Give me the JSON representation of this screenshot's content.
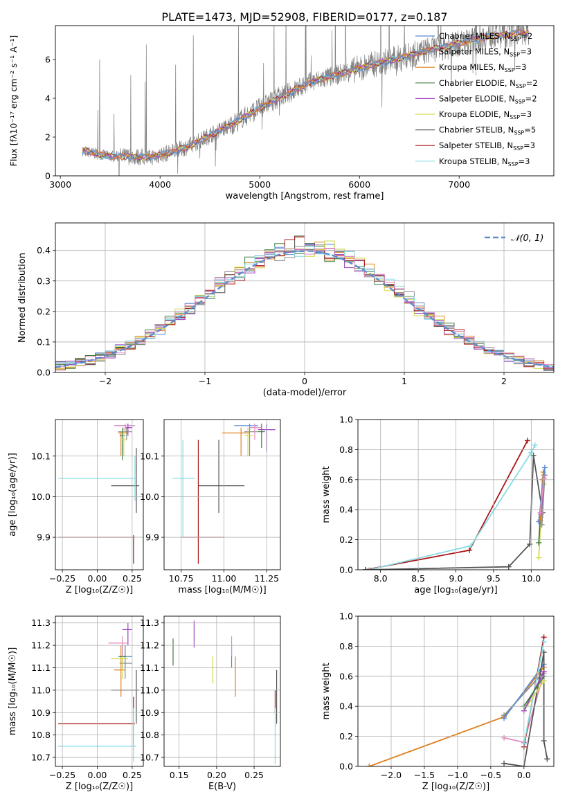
{
  "title": "PLATE=1473, MJD=52908, FIBERID=0177, z=0.187",
  "colors": {
    "Chabrier MILES": "#5b8bd0",
    "Salpeter MILES": "#8c8c8c",
    "Kroupa MILES": "#e0801f",
    "Chabrier ELODIE": "#3e7d3e",
    "Salpeter ELODIE": "#9b3fbf",
    "Kroupa ELODIE": "#d3d94c",
    "Chabrier STELIB": "#555555",
    "Salpeter STELIB": "#aa1515",
    "Kroupa STELIB": "#86dbe3",
    "pink": "#e38cc0",
    "gaussian": "#5b8bd0"
  },
  "chart_data": [
    {
      "type": "line",
      "id": "spectrum",
      "xlabel": "wavelength [Angstrom, rest frame]",
      "ylabel": "Flux [f$_\\lambda$10$^{-17}$ erg cm$^{-2}$ s$^{-1}$ A$^{-1}$]",
      "xlim": [
        2950,
        7950
      ],
      "ylim": [
        0,
        7.75
      ],
      "xticks": [
        "3000",
        "4000",
        "5000",
        "6000",
        "7000"
      ],
      "yticks": [
        "0",
        "2",
        "4",
        "6"
      ],
      "legend": "upper-right",
      "legend_entries": [
        {
          "label": "Chabrier MILES, N",
          "sub": "SSP",
          "suffix": "=2",
          "key": "Chabrier MILES"
        },
        {
          "label": "Salpeter MILES, N",
          "sub": "SSP",
          "suffix": "=3",
          "key": "Salpeter MILES"
        },
        {
          "label": "Kroupa MILES, N",
          "sub": "SSP",
          "suffix": "=3",
          "key": "Kroupa MILES"
        },
        {
          "label": "Chabrier ELODIE, N",
          "sub": "SSP",
          "suffix": "=2",
          "key": "Chabrier ELODIE"
        },
        {
          "label": "Salpeter ELODIE, N",
          "sub": "SSP",
          "suffix": "=2",
          "key": "Salpeter ELODIE"
        },
        {
          "label": "Kroupa ELODIE, N",
          "sub": "SSP",
          "suffix": "=3",
          "key": "Kroupa ELODIE"
        },
        {
          "label": "Chabrier STELIB, N",
          "sub": "SSP",
          "suffix": "=5",
          "key": "Chabrier STELIB"
        },
        {
          "label": "Salpeter STELIB, N",
          "sub": "SSP",
          "suffix": "=3",
          "key": "Salpeter STELIB"
        },
        {
          "label": "Kroupa STELIB, N",
          "sub": "SSP",
          "suffix": "=3",
          "key": "Kroupa STELIB"
        }
      ],
      "continuum": [
        [
          3220,
          1.3
        ],
        [
          3300,
          1.2
        ],
        [
          3500,
          1.0
        ],
        [
          3700,
          1.0
        ],
        [
          3900,
          0.95
        ],
        [
          4100,
          1.2
        ],
        [
          4300,
          1.55
        ],
        [
          4500,
          2.1
        ],
        [
          4700,
          2.6
        ],
        [
          4900,
          3.2
        ],
        [
          5100,
          3.8
        ],
        [
          5300,
          4.3
        ],
        [
          5500,
          4.8
        ],
        [
          5700,
          5.1
        ],
        [
          5900,
          5.4
        ],
        [
          6100,
          5.7
        ],
        [
          6300,
          5.95
        ],
        [
          6500,
          6.2
        ],
        [
          6700,
          6.5
        ],
        [
          6900,
          6.7
        ],
        [
          7100,
          6.95
        ],
        [
          7300,
          7.2
        ],
        [
          7450,
          7.25
        ],
        [
          7600,
          7.4
        ],
        [
          7700,
          7.3
        ]
      ]
    },
    {
      "type": "bar",
      "id": "residuals",
      "xlabel": "(data-model)/error",
      "ylabel": "Normed distribution",
      "xlim": [
        -2.5,
        2.5
      ],
      "ylim": [
        0,
        0.49
      ],
      "xticks": [
        "−2",
        "−1",
        "0",
        "1",
        "2"
      ],
      "yticks": [
        "0.0",
        "0.1",
        "0.2",
        "0.3",
        "0.4"
      ],
      "legend": "upper-right",
      "gaussian_label": "𝒩(0, 1)",
      "bin_width": 0.1
    },
    {
      "type": "scatter",
      "id": "age-vs-Z",
      "xlabel": "Z [log₁₀(Z/Z☉)]",
      "ylabel": "age  [log₁₀(age/yr)]",
      "xlim": [
        -0.3,
        0.33
      ],
      "ylim": [
        9.82,
        10.19
      ],
      "xticks": [
        "−0.25",
        "0.00",
        "0.25"
      ],
      "yticks": [
        "9.9",
        "10.0",
        "10.1"
      ],
      "points": [
        {
          "key": "Chabrier MILES",
          "x": 0.22,
          "y": 10.175,
          "ex": [
            0.13,
            0.27
          ],
          "ey": [
            10.165,
            10.18
          ]
        },
        {
          "key": "Salpeter MILES",
          "x": 0.21,
          "y": 10.16,
          "ex": [
            0.15,
            0.25
          ],
          "ey": [
            10.14,
            10.17
          ]
        },
        {
          "key": "Kroupa MILES",
          "x": 0.17,
          "y": 10.157,
          "ex": [
            0.15,
            0.22
          ],
          "ey": [
            10.1,
            10.16
          ]
        },
        {
          "key": "Chabrier ELODIE",
          "x": 0.18,
          "y": 10.15,
          "ex": [
            0.16,
            0.2
          ],
          "ey": [
            10.09,
            10.17
          ]
        },
        {
          "key": "Salpeter ELODIE",
          "x": 0.22,
          "y": 10.17,
          "ex": [
            0.2,
            0.25
          ],
          "ey": [
            10.15,
            10.18
          ]
        },
        {
          "key": "Kroupa ELODIE",
          "x": 0.19,
          "y": 10.14,
          "ex": [
            0.17,
            0.21
          ],
          "ey": [
            10.1,
            10.17
          ]
        },
        {
          "key": "Chabrier STELIB",
          "x": 0.28,
          "y": 10.027,
          "ex": [
            0.1,
            0.3
          ],
          "ey": [
            9.96,
            10.12
          ]
        },
        {
          "key": "Salpeter STELIB",
          "x": 0.26,
          "y": 9.9,
          "ex": [
            -0.28,
            0.27
          ],
          "ey": [
            9.835,
            9.905
          ]
        },
        {
          "key": "Kroupa STELIB",
          "x": 0.27,
          "y": 10.045,
          "ex": [
            -0.28,
            0.28
          ],
          "ey": [
            9.99,
            10.1
          ]
        },
        {
          "key": "pink",
          "x": 0.2,
          "y": 10.175,
          "ex": [
            0.12,
            0.27
          ],
          "ey": [
            10.16,
            10.18
          ]
        }
      ]
    },
    {
      "type": "scatter",
      "id": "age-vs-mass",
      "xlabel": "mass [log₁₀(M/M☉)]",
      "ylabel": "",
      "xlim": [
        10.65,
        11.33
      ],
      "ylim": [
        9.82,
        10.19
      ],
      "xticks": [
        "10.75",
        "11.00",
        "11.25"
      ],
      "yticks": [
        "9.9",
        "10.0",
        "10.1"
      ],
      "points": [
        {
          "key": "Chabrier MILES",
          "x": 11.15,
          "y": 10.175,
          "ex": [
            11.06,
            11.2
          ],
          "ey": [
            10.165,
            10.18
          ]
        },
        {
          "key": "Salpeter MILES",
          "x": 11.15,
          "y": 10.16,
          "ex": [
            11.12,
            11.2
          ],
          "ey": [
            10.1,
            10.17
          ]
        },
        {
          "key": "Kroupa MILES",
          "x": 11.1,
          "y": 10.157,
          "ex": [
            10.99,
            11.15
          ],
          "ey": [
            10.1,
            10.17
          ]
        },
        {
          "key": "Chabrier ELODIE",
          "x": 11.22,
          "y": 10.16,
          "ex": [
            11.2,
            11.24
          ],
          "ey": [
            10.12,
            10.18
          ]
        },
        {
          "key": "Salpeter ELODIE",
          "x": 11.25,
          "y": 10.165,
          "ex": [
            11.2,
            11.3
          ],
          "ey": [
            10.11,
            10.18
          ]
        },
        {
          "key": "Kroupa ELODIE",
          "x": 11.14,
          "y": 10.15,
          "ex": [
            11.12,
            11.17
          ],
          "ey": [
            10.1,
            10.17
          ]
        },
        {
          "key": "Chabrier STELIB",
          "x": 10.97,
          "y": 10.027,
          "ex": [
            10.85,
            11.12
          ],
          "ey": [
            9.96,
            10.14
          ]
        },
        {
          "key": "Salpeter STELIB",
          "x": 10.85,
          "y": 9.9,
          "ex": [
            10.75,
            11.0
          ],
          "ey": [
            9.835,
            10.14
          ]
        },
        {
          "key": "Kroupa STELIB",
          "x": 10.76,
          "y": 10.045,
          "ex": [
            10.7,
            10.83
          ],
          "ey": [
            9.9,
            10.14
          ]
        },
        {
          "key": "pink",
          "x": 11.18,
          "y": 10.17,
          "ex": [
            11.15,
            11.22
          ],
          "ey": [
            10.14,
            10.18
          ]
        }
      ]
    },
    {
      "type": "line",
      "id": "massweight-vs-age",
      "xlabel": "age  [log₁₀(age/yr)]",
      "ylabel": "mass weight",
      "xlim": [
        7.7,
        10.3
      ],
      "ylim": [
        0,
        1
      ],
      "xticks": [
        "8.0",
        "8.5",
        "9.0",
        "9.5",
        "10.0"
      ],
      "yticks": [
        "0.0",
        "0.2",
        "0.4",
        "0.6",
        "0.8",
        "1.0"
      ],
      "series": [
        {
          "key": "Salpeter STELIB",
          "x": [
            7.8,
            9.18,
            9.95
          ],
          "y": [
            0.0,
            0.13,
            0.86
          ]
        },
        {
          "key": "Kroupa STELIB",
          "x": [
            7.85,
            9.2,
            10.0,
            10.05
          ],
          "y": [
            0.0,
            0.16,
            0.78,
            0.83
          ]
        },
        {
          "key": "Chabrier STELIB",
          "x": [
            7.8,
            9.7,
            9.98,
            10.03,
            10.15
          ],
          "y": [
            0.0,
            0.02,
            0.17,
            0.76,
            0.38
          ]
        },
        {
          "key": "Kroupa ELODIE",
          "x": [
            10.1,
            10.13,
            10.17
          ],
          "y": [
            0.08,
            0.35,
            0.57
          ]
        },
        {
          "key": "Salpeter ELODIE",
          "x": [
            10.13,
            10.17
          ],
          "y": [
            0.37,
            0.63
          ]
        },
        {
          "key": "Chabrier ELODIE",
          "x": [
            10.1,
            10.15
          ],
          "y": [
            0.18,
            0.6
          ]
        },
        {
          "key": "Kroupa MILES",
          "x": [
            10.12,
            10.16
          ],
          "y": [
            0.33,
            0.65
          ]
        },
        {
          "key": "Salpeter MILES",
          "x": [
            10.14,
            10.18
          ],
          "y": [
            0.3,
            0.63
          ]
        },
        {
          "key": "Chabrier MILES",
          "x": [
            10.1,
            10.18
          ],
          "y": [
            0.32,
            0.68
          ]
        },
        {
          "key": "pink",
          "x": [
            10.12,
            10.17
          ],
          "y": [
            0.38,
            0.61
          ]
        }
      ]
    },
    {
      "type": "scatter",
      "id": "mass-vs-Z",
      "xlabel": "Z [log₁₀(Z/Z☉)]",
      "ylabel": "mass [log₁₀(M/M☉)]",
      "xlim": [
        -0.3,
        0.33
      ],
      "ylim": [
        10.66,
        11.33
      ],
      "xticks": [
        "−0.25",
        "0.00",
        "0.25"
      ],
      "yticks": [
        "10.7",
        "10.8",
        "10.9",
        "11.0",
        "11.1",
        "11.2",
        "11.3"
      ],
      "points": [
        {
          "key": "Chabrier MILES",
          "x": 0.2,
          "y": 11.15,
          "ex": [
            0.15,
            0.25
          ],
          "ey": [
            11.1,
            11.2
          ]
        },
        {
          "key": "Salpeter MILES",
          "x": 0.2,
          "y": 11.12,
          "ex": [
            0.16,
            0.25
          ],
          "ey": [
            11.05,
            11.2
          ]
        },
        {
          "key": "Kroupa MILES",
          "x": 0.17,
          "y": 11.09,
          "ex": [
            0.12,
            0.2
          ],
          "ey": [
            10.97,
            11.2
          ]
        },
        {
          "key": "Chabrier ELODIE",
          "x": 0.18,
          "y": 11.15,
          "ex": [
            0.16,
            0.2
          ],
          "ey": [
            11.1,
            11.2
          ]
        },
        {
          "key": "Salpeter ELODIE",
          "x": 0.22,
          "y": 11.27,
          "ex": [
            0.18,
            0.25
          ],
          "ey": [
            11.2,
            11.3
          ]
        },
        {
          "key": "Kroupa ELODIE",
          "x": 0.18,
          "y": 11.14,
          "ex": [
            0.1,
            0.22
          ],
          "ey": [
            11.05,
            11.2
          ]
        },
        {
          "key": "Chabrier STELIB",
          "x": 0.28,
          "y": 11.0,
          "ex": [
            0.1,
            0.3
          ],
          "ey": [
            10.85,
            11.09
          ]
        },
        {
          "key": "Salpeter STELIB",
          "x": 0.26,
          "y": 10.85,
          "ex": [
            -0.28,
            0.27
          ],
          "ey": [
            10.75,
            10.97
          ]
        },
        {
          "key": "Kroupa STELIB",
          "x": 0.26,
          "y": 10.75,
          "ex": [
            -0.28,
            0.28
          ],
          "ey": [
            10.68,
            10.92
          ]
        },
        {
          "key": "pink",
          "x": 0.18,
          "y": 11.21,
          "ex": [
            0.08,
            0.22
          ],
          "ey": [
            11.15,
            11.24
          ]
        }
      ]
    },
    {
      "type": "scatter",
      "id": "mass-vs-EBV",
      "xlabel": "E(B-V)",
      "ylabel": "",
      "xlim": [
        0.13,
        0.285
      ],
      "ylim": [
        10.66,
        11.33
      ],
      "xticks": [
        "0.15",
        "0.20",
        "0.25"
      ],
      "yticks": [
        "10.7",
        "10.8",
        "10.9",
        "11.0",
        "11.1",
        "11.2",
        "11.3"
      ],
      "points": [
        {
          "key": "Chabrier MILES",
          "x": 0.22,
          "y": 11.15,
          "ey": [
            11.1,
            11.2
          ]
        },
        {
          "key": "Kroupa MILES",
          "x": 0.225,
          "y": 11.09,
          "ey": [
            10.97,
            11.15
          ]
        },
        {
          "key": "Chabrier ELODIE",
          "x": 0.142,
          "y": 11.17,
          "ey": [
            11.11,
            11.23
          ]
        },
        {
          "key": "Salpeter ELODIE",
          "x": 0.17,
          "y": 11.25,
          "ey": [
            11.19,
            11.31
          ]
        },
        {
          "key": "Kroupa ELODIE",
          "x": 0.195,
          "y": 11.08,
          "ey": [
            11.03,
            11.15
          ]
        },
        {
          "key": "pink",
          "x": 0.22,
          "y": 11.2,
          "ey": [
            11.15,
            11.24
          ]
        },
        {
          "key": "Chabrier STELIB",
          "x": 0.28,
          "y": 11.0,
          "ey": [
            10.85,
            11.09
          ]
        },
        {
          "key": "Salpeter STELIB",
          "x": 0.278,
          "y": 10.95,
          "ey": [
            10.9,
            11.0
          ]
        },
        {
          "key": "Kroupa STELIB",
          "x": 0.278,
          "y": 10.8,
          "ey": [
            10.67,
            10.92
          ]
        }
      ]
    },
    {
      "type": "line",
      "id": "massweight-vs-Z",
      "xlabel": "Z [log₁₀(Z/Z☉)]",
      "ylabel": "mass weight",
      "xlim": [
        -2.5,
        0.45
      ],
      "ylim": [
        0,
        1
      ],
      "xticks": [
        "−2.0",
        "−1.5",
        "−1.0",
        "−0.5",
        "0.0"
      ],
      "yticks": [
        "0.0",
        "0.2",
        "0.4",
        "0.6",
        "0.8",
        "1.0"
      ],
      "series": [
        {
          "key": "Kroupa MILES",
          "x": [
            -2.33,
            -0.3,
            0.3
          ],
          "y": [
            0.0,
            0.33,
            0.66
          ]
        },
        {
          "key": "Salpeter MILES",
          "x": [
            -0.3,
            0.3
          ],
          "y": [
            0.34,
            0.63
          ]
        },
        {
          "key": "Chabrier MILES",
          "x": [
            -0.3,
            0.3
          ],
          "y": [
            0.32,
            0.68
          ]
        },
        {
          "key": "pink",
          "x": [
            -0.3,
            0.0,
            0.3
          ],
          "y": [
            0.19,
            0.16,
            0.62
          ]
        },
        {
          "key": "Chabrier STELIB",
          "x": [
            -0.3,
            0.0,
            0.3,
            0.3,
            0.35,
            0.35
          ],
          "y": [
            0.02,
            0.0,
            0.76,
            0.17,
            0.05,
            0.05
          ]
        },
        {
          "key": "Salpeter STELIB",
          "x": [
            0.0,
            0.3
          ],
          "y": [
            0.13,
            0.86
          ]
        },
        {
          "key": "Kroupa STELIB",
          "x": [
            0.0,
            0.3
          ],
          "y": [
            0.15,
            0.83
          ]
        },
        {
          "key": "Kroupa ELODIE",
          "x": [
            0.0,
            0.3
          ],
          "y": [
            0.37,
            0.57
          ]
        },
        {
          "key": "Salpeter ELODIE",
          "x": [
            0.0,
            0.3
          ],
          "y": [
            0.37,
            0.63
          ]
        },
        {
          "key": "Chabrier ELODIE",
          "x": [
            0.0,
            0.3
          ],
          "y": [
            0.4,
            0.6
          ]
        }
      ]
    }
  ]
}
